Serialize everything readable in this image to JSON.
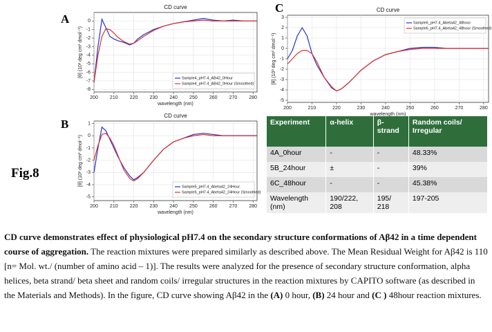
{
  "chart_data": [
    {
      "type": "line",
      "panel": "A",
      "title": "CD curve",
      "x_label": "wavelength (nm)",
      "y_label": "[θ] (10³ deg cm² dmol⁻¹)",
      "x": [
        200,
        202,
        204,
        206,
        208,
        210,
        212,
        215,
        218,
        220,
        222,
        225,
        230,
        235,
        240,
        245,
        250,
        255,
        260,
        265,
        270,
        275,
        280,
        282
      ],
      "series": [
        {
          "name": "Sample4_pH7.4_AB42_0Hour",
          "color": "#2233cc",
          "values": [
            -7.2,
            -3,
            0.2,
            -0.8,
            -1.8,
            -2.1,
            -2.3,
            -2.5,
            -2.8,
            -2.6,
            -2.1,
            -1.6,
            -1,
            -0.6,
            -0.3,
            -0.1,
            0.1,
            0.3,
            0.1,
            0,
            0.1,
            0,
            0,
            0
          ]
        },
        {
          "name": "Sample4_pH7.4_AB42_0Hour (Smoothed)",
          "color": "#e03030",
          "values": [
            -7.2,
            -4,
            -1.8,
            -0.9,
            -1,
            -1.4,
            -1.9,
            -2.4,
            -2.7,
            -2.6,
            -2.3,
            -1.8,
            -1.1,
            -0.6,
            -0.3,
            -0.1,
            0,
            0.1,
            0,
            0,
            0,
            0,
            0,
            0
          ]
        }
      ],
      "xlim": [
        200,
        282
      ],
      "xticks": [
        200,
        210,
        220,
        230,
        240,
        250,
        260,
        270,
        280
      ],
      "ylim": [
        -8.3,
        1
      ],
      "yticks": [
        0,
        -1,
        -2,
        -3,
        -4,
        -5,
        -6,
        -7,
        -8
      ],
      "legend": "lower right",
      "grid": true
    },
    {
      "type": "line",
      "panel": "B",
      "title": "CD curve",
      "x_label": "wavelength (nm)",
      "y_label": "[θ] (10³ deg cm² dmol⁻¹)",
      "x": [
        200,
        202,
        204,
        206,
        208,
        210,
        212,
        215,
        218,
        220,
        222,
        225,
        230,
        235,
        240,
        245,
        250,
        255,
        260,
        265,
        270,
        275,
        280,
        282
      ],
      "series": [
        {
          "name": "Sample5_pH7.4_Abeta42_24Hour",
          "color": "#2233cc",
          "values": [
            -3,
            -1,
            0.7,
            0.4,
            -0.3,
            -1,
            -1.7,
            -2.6,
            -3.3,
            -3.6,
            -3.4,
            -3,
            -2,
            -1.1,
            -0.5,
            -0.2,
            0.1,
            0.2,
            0.1,
            0,
            0,
            0,
            0,
            0
          ]
        },
        {
          "name": "Sample5_pH7.4_Abeta42_24Hour (Smoothed)",
          "color": "#e03030",
          "values": [
            -2,
            -0.8,
            0.1,
            0.2,
            -0.2,
            -0.8,
            -1.6,
            -2.8,
            -3.5,
            -3.7,
            -3.5,
            -3,
            -2,
            -1.1,
            -0.5,
            -0.2,
            0,
            0.1,
            0,
            0,
            0,
            0,
            0,
            0
          ]
        }
      ],
      "xlim": [
        200,
        282
      ],
      "xticks": [
        200,
        210,
        220,
        230,
        240,
        250,
        260,
        270,
        280
      ],
      "ylim": [
        -5.3,
        1.2
      ],
      "yticks": [
        1,
        0,
        -1,
        -2,
        -3,
        -4,
        -5
      ],
      "legend": "lower right",
      "grid": true
    },
    {
      "type": "line",
      "panel": "C",
      "title": "CD curve",
      "x_label": "wavelength (nm)",
      "y_label": "[θ] (10³ deg cm² dmol⁻¹)",
      "x": [
        200,
        202,
        204,
        206,
        208,
        210,
        212,
        215,
        218,
        220,
        222,
        225,
        230,
        235,
        240,
        245,
        250,
        255,
        260,
        265,
        270,
        275,
        280,
        282
      ],
      "series": [
        {
          "name": "Sample6_pH7.4_Abeta42_48hour",
          "color": "#2233cc",
          "values": [
            -1,
            -0.2,
            1.2,
            2,
            1.2,
            -0.5,
            -1.6,
            -2.8,
            -3.8,
            -4.1,
            -3.9,
            -3.3,
            -2.1,
            -1.2,
            -0.6,
            -0.3,
            0,
            0.1,
            0.1,
            0,
            0,
            0,
            0,
            0
          ]
        },
        {
          "name": "Sample6_pH7.4_Abeta42_48hour (Smoothed)",
          "color": "#e03030",
          "values": [
            -1.5,
            -1,
            -0.5,
            -0.2,
            -0.2,
            -0.5,
            -1.3,
            -2.8,
            -3.7,
            -4.1,
            -3.9,
            -3.3,
            -2.1,
            -1.2,
            -0.6,
            -0.3,
            -0.1,
            0,
            0,
            0,
            0,
            0,
            0,
            0
          ]
        }
      ],
      "xlim": [
        200,
        282
      ],
      "xticks": [
        200,
        210,
        220,
        230,
        240,
        250,
        260,
        270,
        280
      ],
      "ylim": [
        -5.2,
        3.2
      ],
      "yticks": [
        3,
        2,
        1,
        0,
        -1,
        -2,
        -3,
        -4,
        -5
      ],
      "legend": "upper right",
      "grid": true
    }
  ],
  "figure_label": "Fig.8",
  "table": {
    "header": [
      "Experiment",
      "α-helix",
      "β-strand",
      "Random coils/ Irregular"
    ],
    "rows": [
      [
        "4A_0hour",
        "-",
        "-",
        "48.33%"
      ],
      [
        "5B_24hour",
        "±",
        "-",
        "39%"
      ],
      [
        "6C_48hour",
        "-",
        "-",
        "45.38%"
      ],
      [
        "Wavelength (nm)",
        "190/222, 208",
        "195/ 218",
        "197-205"
      ]
    ]
  },
  "caption": [
    {
      "text": "CD curve demonstrates effect of physiological pH7.4 on the secondary structure conformations of Aβ42 in a time dependent course of aggregation.",
      "bold": true
    },
    {
      "text": " The reaction mixtures were prepared similarly as described above. The Mean Residual Weight for Aβ42 is 110 [n= Mol. wt./ (number of amino acid – 1)]. The results were analyzed for the presence of secondary structure conformation, alpha helices, beta strand/ beta sheet and random coils/ irregular structures in the reaction mixtures by CAPITO software (as described in the Materials and Methods). In the figure, CD curve showing Aβ42 in the ",
      "bold": false
    },
    {
      "text": "(A)",
      "bold": true
    },
    {
      "text": " 0 hour, ",
      "bold": false
    },
    {
      "text": "(B)",
      "bold": true
    },
    {
      "text": " 24 hour and ",
      "bold": false
    },
    {
      "text": "(C )",
      "bold": true
    },
    {
      "text": " 48hour reaction mixtures.",
      "bold": false
    }
  ]
}
